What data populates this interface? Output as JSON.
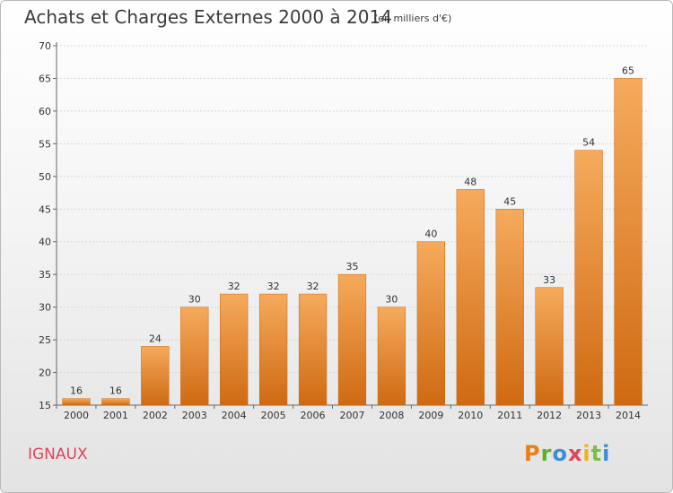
{
  "header": {
    "title": "Achats et Charges Externes 2000 à 2014",
    "subtitle": "(en milliers d'€)"
  },
  "footer": {
    "commune": "IGNAUX",
    "logo_letters": [
      "P",
      "r",
      "o",
      "x",
      "i",
      "t",
      "i"
    ]
  },
  "chart_data": {
    "type": "bar",
    "title": "Achats et Charges Externes 2000 à 2014",
    "subtitle": "(en milliers d'€)",
    "xlabel": "",
    "ylabel": "",
    "categories": [
      "2000",
      "2001",
      "2002",
      "2003",
      "2004",
      "2005",
      "2006",
      "2007",
      "2008",
      "2009",
      "2010",
      "2011",
      "2012",
      "2013",
      "2014"
    ],
    "values": [
      16,
      16,
      24,
      30,
      32,
      32,
      32,
      35,
      30,
      40,
      48,
      45,
      33,
      54,
      65
    ],
    "ylim": [
      15,
      70
    ],
    "yticks": [
      15,
      20,
      25,
      30,
      35,
      40,
      45,
      50,
      55,
      60,
      65,
      70
    ],
    "grid": true,
    "bar_color": "#ee8a2a",
    "bar_color_light": "#f6aa5c",
    "bar_color_dark": "#cf6a12"
  }
}
